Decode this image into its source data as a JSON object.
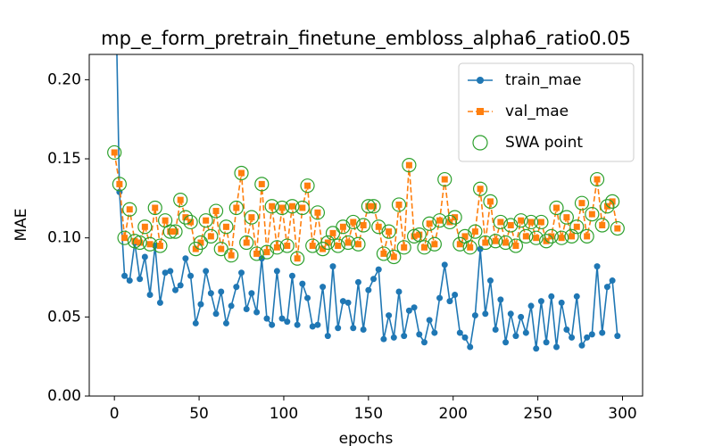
{
  "chart_data": {
    "type": "line",
    "title": "mp_e_form_pretrain_finetune_embloss_alpha6_ratio0.05",
    "x_label": "epochs",
    "y_label": "MAE",
    "x": [
      0,
      3,
      6,
      9,
      12,
      15,
      18,
      21,
      24,
      27,
      30,
      33,
      36,
      39,
      42,
      45,
      48,
      51,
      54,
      57,
      60,
      63,
      66,
      69,
      72,
      75,
      78,
      81,
      84,
      87,
      90,
      93,
      96,
      99,
      102,
      105,
      108,
      111,
      114,
      117,
      120,
      123,
      126,
      129,
      132,
      135,
      138,
      141,
      144,
      147,
      150,
      153,
      156,
      159,
      162,
      165,
      168,
      171,
      174,
      177,
      180,
      183,
      186,
      189,
      192,
      195,
      198,
      201,
      204,
      207,
      210,
      213,
      216,
      219,
      222,
      225,
      228,
      231,
      234,
      237,
      240,
      243,
      246,
      249,
      252,
      255,
      258,
      261,
      264,
      267,
      270,
      273,
      276,
      279,
      282,
      285,
      288,
      291,
      294,
      297
    ],
    "series": [
      {
        "name": "train_mae",
        "color": "#1f77b4",
        "style": "solid",
        "marker": "circle",
        "values": [
          0.3,
          0.129,
          0.076,
          0.073,
          0.097,
          0.074,
          0.088,
          0.064,
          0.095,
          0.059,
          0.078,
          0.079,
          0.067,
          0.07,
          0.087,
          0.076,
          0.046,
          0.058,
          0.079,
          0.065,
          0.052,
          0.066,
          0.046,
          0.057,
          0.069,
          0.078,
          0.055,
          0.065,
          0.053,
          0.087,
          0.049,
          0.045,
          0.079,
          0.049,
          0.047,
          0.076,
          0.045,
          0.071,
          0.062,
          0.044,
          0.045,
          0.069,
          0.038,
          0.082,
          0.043,
          0.06,
          0.059,
          0.043,
          0.072,
          0.042,
          0.067,
          0.074,
          0.08,
          0.036,
          0.051,
          0.037,
          0.066,
          0.038,
          0.054,
          0.056,
          0.039,
          0.034,
          0.048,
          0.04,
          0.062,
          0.083,
          0.06,
          0.064,
          0.04,
          0.037,
          0.031,
          0.051,
          0.093,
          0.052,
          0.073,
          0.042,
          0.061,
          0.034,
          0.052,
          0.038,
          0.05,
          0.04,
          0.057,
          0.03,
          0.06,
          0.034,
          0.063,
          0.031,
          0.059,
          0.042,
          0.037,
          0.063,
          0.032,
          0.037,
          0.039,
          0.082,
          0.04,
          0.069,
          0.073,
          0.038
        ]
      },
      {
        "name": "val_mae",
        "color": "#ff7f0e",
        "style": "dashed",
        "marker": "square",
        "values": [
          0.154,
          0.134,
          0.1,
          0.118,
          0.098,
          0.097,
          0.107,
          0.096,
          0.119,
          0.095,
          0.111,
          0.104,
          0.104,
          0.124,
          0.113,
          0.11,
          0.093,
          0.097,
          0.111,
          0.101,
          0.117,
          0.093,
          0.107,
          0.089,
          0.119,
          0.141,
          0.097,
          0.113,
          0.09,
          0.134,
          0.091,
          0.12,
          0.094,
          0.119,
          0.095,
          0.12,
          0.087,
          0.119,
          0.133,
          0.095,
          0.116,
          0.093,
          0.097,
          0.103,
          0.095,
          0.107,
          0.097,
          0.11,
          0.096,
          0.108,
          0.12,
          0.12,
          0.107,
          0.09,
          0.104,
          0.088,
          0.121,
          0.094,
          0.146,
          0.101,
          0.102,
          0.094,
          0.109,
          0.096,
          0.111,
          0.137,
          0.11,
          0.113,
          0.096,
          0.101,
          0.094,
          0.104,
          0.131,
          0.097,
          0.123,
          0.098,
          0.11,
          0.097,
          0.108,
          0.095,
          0.111,
          0.101,
          0.11,
          0.1,
          0.11,
          0.098,
          0.101,
          0.119,
          0.1,
          0.113,
          0.101,
          0.107,
          0.122,
          0.101,
          0.115,
          0.137,
          0.108,
          0.12,
          0.123,
          0.106
        ]
      },
      {
        "name": "SWA point",
        "color": "#2ca02c",
        "style": "none",
        "marker": "open-circle",
        "values": [
          0.154,
          0.134,
          0.1,
          0.118,
          0.098,
          0.097,
          0.107,
          0.096,
          0.119,
          0.095,
          0.111,
          0.104,
          0.104,
          0.124,
          0.113,
          0.11,
          0.093,
          0.097,
          0.111,
          0.101,
          0.117,
          0.093,
          0.107,
          0.089,
          0.119,
          0.141,
          0.097,
          0.113,
          0.09,
          0.134,
          0.091,
          0.12,
          0.094,
          0.119,
          0.095,
          0.12,
          0.087,
          0.119,
          0.133,
          0.095,
          0.116,
          0.093,
          0.097,
          0.103,
          0.095,
          0.107,
          0.097,
          0.11,
          0.096,
          0.108,
          0.12,
          0.12,
          0.107,
          0.09,
          0.104,
          0.088,
          0.121,
          0.094,
          0.146,
          0.101,
          0.102,
          0.094,
          0.109,
          0.096,
          0.111,
          0.137,
          0.11,
          0.113,
          0.096,
          0.101,
          0.094,
          0.104,
          0.131,
          0.097,
          0.123,
          0.098,
          0.11,
          0.097,
          0.108,
          0.095,
          0.111,
          0.101,
          0.11,
          0.1,
          0.11,
          0.098,
          0.101,
          0.119,
          0.1,
          0.113,
          0.101,
          0.107,
          0.122,
          0.101,
          0.115,
          0.137,
          0.108,
          0.12,
          0.123,
          0.106
        ]
      }
    ],
    "xlim": [
      -14.85,
      311.85
    ],
    "ylim": [
      0,
      0.216
    ],
    "xticks": [
      0,
      50,
      100,
      150,
      200,
      250,
      300
    ],
    "yticks": [
      {
        "value": 0,
        "label": "0.00"
      },
      {
        "value": 0.05,
        "label": "0.05"
      },
      {
        "value": 0.1,
        "label": "0.10"
      },
      {
        "value": 0.15,
        "label": "0.15"
      },
      {
        "value": 0.2,
        "label": "0.20"
      }
    ],
    "legend": "upper right"
  }
}
